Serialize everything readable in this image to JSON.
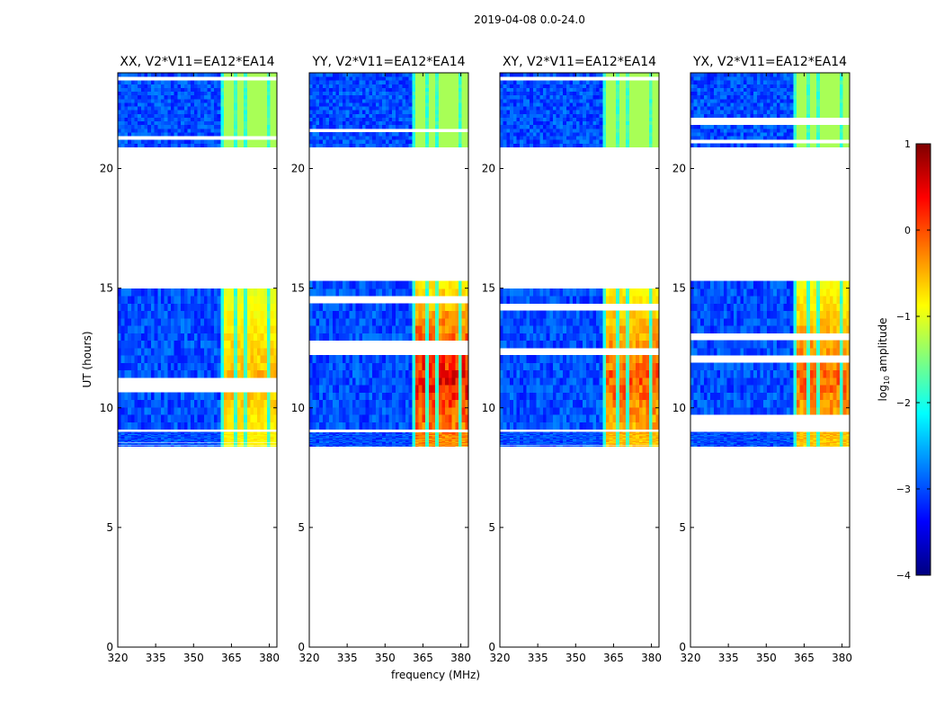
{
  "figure": {
    "suptitle": "2019-04-08 0.0-24.0"
  },
  "colorbar": {
    "label": "log10 amplitude",
    "label_main": "log",
    "label_sub": "10",
    "label_tail": " amplitude",
    "range": [
      -4,
      1
    ],
    "tick_values": [
      1,
      0,
      -1,
      -2,
      -3,
      -4
    ],
    "tick_labels": [
      "1",
      "0",
      "−1",
      "−2",
      "−3",
      "−4"
    ],
    "colormap": "jet",
    "colormap_stops": [
      "#00007f",
      "#0000ff",
      "#007fff",
      "#00ffff",
      "#7fff7f",
      "#ffff00",
      "#ff7f00",
      "#ff0000",
      "#7f0000"
    ]
  },
  "chart_data": [
    {
      "type": "heatmap",
      "title": "XX, V2*V11=EA12*EA14",
      "xlabel": "",
      "ylabel": "UT (hours)",
      "xlim": [
        320,
        383
      ],
      "ylim": [
        0,
        24
      ],
      "x_ticks": [
        320,
        335,
        350,
        365,
        380
      ],
      "y_ticks": [
        0,
        5,
        10,
        15,
        20
      ],
      "value_range": [
        -4,
        1
      ],
      "data_blocks_ut": [
        [
          8.4,
          9.0
        ],
        [
          9.1,
          15.3
        ],
        [
          20.9,
          24.0
        ]
      ],
      "rfi_freq_band_mhz": [
        361.5,
        383
      ],
      "peak_log_amplitude_in_band": -0.3,
      "background_log_amplitude": -3.0
    },
    {
      "type": "heatmap",
      "title": "YY, V2*V11=EA12*EA14",
      "xlabel": "frequency (MHz)",
      "ylabel": "",
      "xlim": [
        320,
        383
      ],
      "ylim": [
        0,
        24
      ],
      "x_ticks": [
        320,
        335,
        350,
        365,
        380
      ],
      "y_ticks": [
        0,
        5,
        10,
        15,
        20
      ],
      "value_range": [
        -4,
        1
      ],
      "data_blocks_ut": [
        [
          8.4,
          9.0
        ],
        [
          9.1,
          15.3
        ],
        [
          20.9,
          24.0
        ]
      ],
      "rfi_freq_band_mhz": [
        361.5,
        383
      ],
      "peak_log_amplitude_in_band": 0.8,
      "background_log_amplitude": -3.0
    },
    {
      "type": "heatmap",
      "title": "XY, V2*V11=EA12*EA14",
      "xlabel": "",
      "ylabel": "",
      "xlim": [
        320,
        383
      ],
      "ylim": [
        0,
        24
      ],
      "x_ticks": [
        320,
        335,
        350,
        365,
        380
      ],
      "y_ticks": [
        0,
        5,
        10,
        15,
        20
      ],
      "value_range": [
        -4,
        1
      ],
      "data_blocks_ut": [
        [
          8.4,
          9.0
        ],
        [
          9.1,
          15.3
        ],
        [
          20.9,
          24.0
        ]
      ],
      "rfi_freq_band_mhz": [
        361.5,
        383
      ],
      "peak_log_amplitude_in_band": 0.3,
      "background_log_amplitude": -3.0
    },
    {
      "type": "heatmap",
      "title": "YX, V2*V11=EA12*EA14",
      "xlabel": "",
      "ylabel": "",
      "xlim": [
        320,
        383
      ],
      "ylim": [
        0,
        24
      ],
      "x_ticks": [
        320,
        335,
        350,
        365,
        380
      ],
      "y_ticks": [
        0,
        5,
        10,
        15,
        20
      ],
      "value_range": [
        -4,
        1
      ],
      "data_blocks_ut": [
        [
          8.4,
          9.0
        ],
        [
          9.1,
          15.3
        ],
        [
          20.9,
          24.0
        ]
      ],
      "rfi_freq_band_mhz": [
        361.5,
        383
      ],
      "peak_log_amplitude_in_band": 0.2,
      "background_log_amplitude": -3.0
    }
  ]
}
